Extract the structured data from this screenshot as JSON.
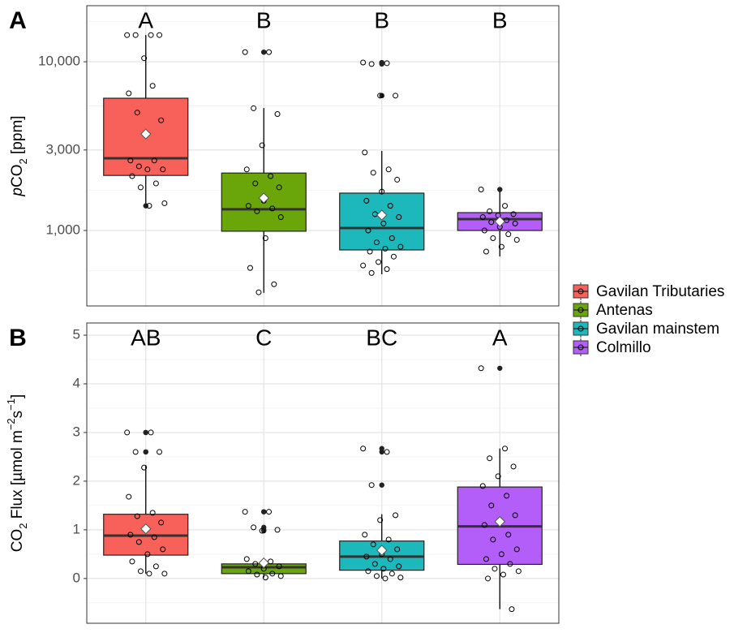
{
  "chart_data": [
    {
      "type": "box",
      "panel_label": "A",
      "log_scale": true,
      "grid": true,
      "y_label": [
        "p",
        "CO",
        "2",
        " [ppm]"
      ],
      "categories": [
        "Gavilan Tributaries",
        "Antenas",
        "Gavilan mainstem",
        "Colmillo"
      ],
      "colors": [
        "#f8615a",
        "#6aa50a",
        "#1db8bb",
        "#b45ef9"
      ],
      "legend": "right",
      "ylim": [
        357,
        21500
      ],
      "yticks": [
        {
          "value": 1000,
          "label": "1,000"
        },
        {
          "value": 3000,
          "label": "3,000"
        },
        {
          "value": 10000,
          "label": "10,000"
        }
      ],
      "stats": [
        {
          "letter": "A",
          "whisker_low": 1425,
          "q1": 2120,
          "median": 2680,
          "q3": 6080,
          "whisker_high": 14400,
          "mean": 3730,
          "points": [
            14400,
            14400,
            14400,
            14400,
            10500,
            6500,
            7200,
            5000,
            4500,
            3700,
            2600,
            2600,
            2400,
            2300,
            2300,
            2100,
            1900,
            1800,
            1450,
            1400
          ]
        },
        {
          "letter": "B",
          "whisker_low": 427,
          "q1": 990,
          "median": 1335,
          "q3": 2190,
          "whisker_high": 5320,
          "mean": 1557,
          "points": [
            11400,
            11400,
            5300,
            4900,
            3200,
            2300,
            2100,
            1900,
            1800,
            1500,
            1400,
            1350,
            1300,
            1200,
            900,
            600,
            480,
            430
          ]
        },
        {
          "letter": "B",
          "whisker_low": 550,
          "q1": 767,
          "median": 1034,
          "q3": 1665,
          "whisker_high": 2960,
          "mean": 1234,
          "points": [
            9900,
            9800,
            9700,
            6300,
            6300,
            2900,
            2300,
            2200,
            2000,
            1700,
            1500,
            1400,
            1250,
            1200,
            1100,
            1000,
            900,
            850,
            800,
            780,
            750,
            700,
            650,
            620,
            590,
            560
          ]
        },
        {
          "letter": "B",
          "whisker_low": 702,
          "q1": 1000,
          "median": 1167,
          "q3": 1276,
          "whisker_high": 1720,
          "mean": 1130,
          "points": [
            1750,
            1400,
            1300,
            1250,
            1230,
            1200,
            1150,
            1120,
            1100,
            1050,
            1000,
            950,
            900,
            880,
            800,
            750
          ]
        }
      ]
    },
    {
      "type": "box",
      "panel_label": "B",
      "log_scale": false,
      "grid": true,
      "y_label": [
        "CO",
        "2",
        " Flux [µmol m",
        "−2",
        "s",
        "−1",
        "]"
      ],
      "ylim": [
        -0.92,
        5.25
      ],
      "yticks": [
        0,
        1,
        2,
        3,
        4,
        5
      ],
      "stats": [
        {
          "letter": "AB",
          "whisker_low": 0.1,
          "q1": 0.48,
          "median": 0.88,
          "q3": 1.32,
          "whisker_high": 2.33,
          "mean": 1.02,
          "points": [
            3.0,
            3.0,
            2.6,
            2.6,
            2.28,
            1.68,
            1.35,
            1.28,
            1.15,
            1.0,
            0.9,
            0.85,
            0.75,
            0.6,
            0.5,
            0.35,
            0.25,
            0.15,
            0.1,
            0.1
          ]
        },
        {
          "letter": "C",
          "whisker_low": 0.02,
          "q1": 0.1,
          "median": 0.23,
          "q3": 0.3,
          "whisker_high": 0.4,
          "mean": 0.32,
          "points": [
            1.37,
            1.37,
            1.05,
            1.0,
            0.98,
            0.4,
            0.35,
            0.3,
            0.25,
            0.2,
            0.15,
            0.1,
            0.08,
            0.05,
            0.02
          ]
        },
        {
          "letter": "BC",
          "whisker_low": 0.0,
          "q1": 0.17,
          "median": 0.45,
          "q3": 0.77,
          "whisker_high": 1.32,
          "mean": 0.58,
          "points": [
            2.67,
            2.6,
            1.92,
            1.3,
            1.2,
            0.9,
            0.8,
            0.7,
            0.6,
            0.5,
            0.45,
            0.4,
            0.3,
            0.25,
            0.2,
            0.15,
            0.1,
            0.05,
            0.02,
            0.0
          ]
        },
        {
          "letter": "A",
          "whisker_low": -0.63,
          "q1": 0.29,
          "median": 1.07,
          "q3": 1.88,
          "whisker_high": 2.67,
          "mean": 1.17,
          "points": [
            4.32,
            2.67,
            2.47,
            2.3,
            2.1,
            1.9,
            1.7,
            1.5,
            1.3,
            1.2,
            1.1,
            0.9,
            0.8,
            0.6,
            0.5,
            0.4,
            0.3,
            0.2,
            0.15,
            0.08,
            0.0,
            -0.63
          ]
        }
      ]
    }
  ]
}
